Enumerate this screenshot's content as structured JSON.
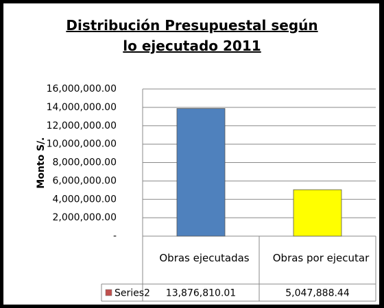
{
  "chart_data": {
    "type": "bar",
    "title": "Distribución Presupuestal según lo ejecutado 2011",
    "y_label": "Monto S/.",
    "categories": [
      "Obras ejecutadas",
      "Obras por ejecutar"
    ],
    "series": [
      {
        "name": "Series2",
        "color": "#c0504d",
        "point_colors": [
          "#4f81bd",
          "#ffff00"
        ],
        "values": [
          13876810.01,
          5047888.44
        ],
        "value_labels": [
          "13,876,810.01",
          "5,047,888.44"
        ]
      }
    ],
    "ylim": [
      0,
      16000000
    ],
    "yticks": [
      {
        "value": 0,
        "label": "-"
      },
      {
        "value": 2000000,
        "label": "2,000,000.00"
      },
      {
        "value": 4000000,
        "label": "4,000,000.00"
      },
      {
        "value": 6000000,
        "label": "6,000,000.00"
      },
      {
        "value": 8000000,
        "label": "8,000,000.00"
      },
      {
        "value": 10000000,
        "label": "10,000,000.00"
      },
      {
        "value": 12000000,
        "label": "12,000,000.00"
      },
      {
        "value": 14000000,
        "label": "14,000,000.00"
      },
      {
        "value": 16000000,
        "label": "16,000,000.00"
      }
    ],
    "grid": true
  }
}
